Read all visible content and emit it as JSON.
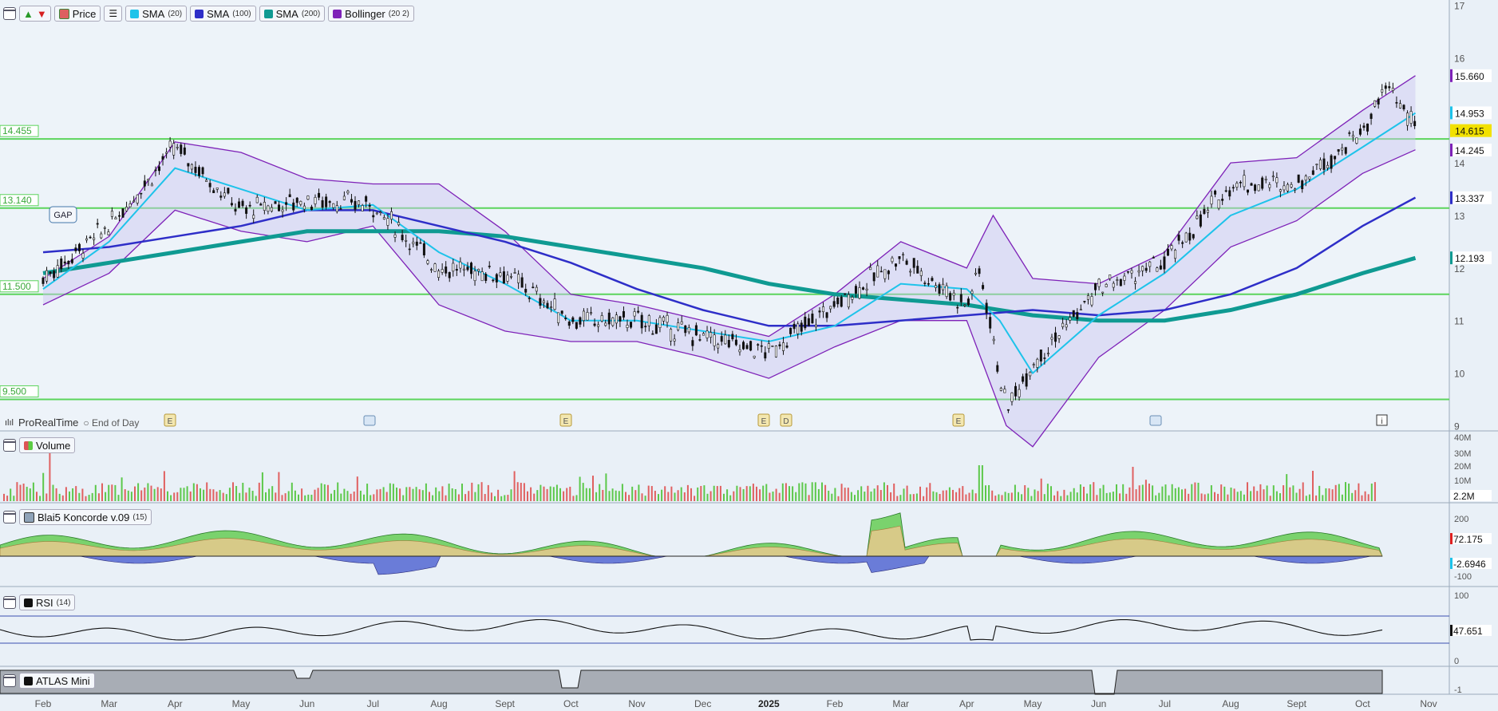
{
  "toolbar": {
    "price_label": "Price",
    "indicators": [
      {
        "name": "SMA",
        "param": "(20)",
        "color": "#1ec3ea"
      },
      {
        "name": "SMA",
        "param": "(100)",
        "color": "#2e2ec8"
      },
      {
        "name": "SMA",
        "param": "(200)",
        "color": "#0f9a92"
      },
      {
        "name": "Bollinger",
        "param": "(20 2)",
        "color": "#7e22b8"
      }
    ]
  },
  "brand": {
    "name": "ProRealTime",
    "mode": "End of Day"
  },
  "panels": {
    "volume": {
      "label": "Volume",
      "last": "2.2M",
      "axis": [
        "40M",
        "30M",
        "20M",
        "10M"
      ]
    },
    "koncorde": {
      "label": "Blai5 Koncorde v.09",
      "param": "(15)",
      "last_values": [
        "72.175",
        "-2.6946"
      ],
      "axis": [
        "200",
        "-100"
      ]
    },
    "rsi": {
      "label": "RSI",
      "param": "(14)",
      "last": "47.651",
      "axis": [
        "100",
        "0"
      ]
    },
    "atlas": {
      "label": "ATLAS Mini",
      "axis": [
        "-1"
      ]
    }
  },
  "gap_label": "GAP",
  "event_markers": [
    "E",
    "E",
    "E",
    "D",
    "E"
  ],
  "chart_data": {
    "type": "candlestick",
    "x_labels": [
      "Feb",
      "Mar",
      "Apr",
      "May",
      "Jun",
      "Jul",
      "Aug",
      "Sept",
      "Oct",
      "Nov",
      "Dec",
      "2025",
      "Feb",
      "Mar",
      "Apr",
      "May",
      "Jun",
      "Jul",
      "Aug",
      "Sept",
      "Oct",
      "Nov"
    ],
    "y_ticks": [
      9,
      10,
      11,
      12,
      13,
      14,
      15,
      16,
      17
    ],
    "ylim": [
      8.9,
      17.1
    ],
    "horizontal_levels": [
      {
        "value": 14.455,
        "label": "14.455",
        "color": "#5cd45c"
      },
      {
        "value": 13.14,
        "label": "13.140",
        "color": "#5cd45c"
      },
      {
        "value": 11.5,
        "label": "11.500",
        "color": "#5cd45c"
      },
      {
        "value": 9.5,
        "label": "9.500",
        "color": "#5cd45c"
      }
    ],
    "right_value_tags": [
      {
        "label": "15.660",
        "series": "Bollinger upper",
        "color": "#7e22b8"
      },
      {
        "label": "14.953",
        "series": "SMA 20",
        "color": "#1ec3ea"
      },
      {
        "label": "14.615",
        "series": "Price",
        "color": "#f2e100"
      },
      {
        "label": "14.245",
        "series": "Bollinger lower",
        "color": "#7e22b8"
      },
      {
        "label": "13.337",
        "series": "SMA 100",
        "color": "#2e2ec8"
      },
      {
        "label": "12.193",
        "series": "SMA 200",
        "color": "#0f9a92"
      }
    ],
    "series": [
      {
        "name": "Price",
        "points": [
          [
            0,
            11.8
          ],
          [
            1,
            12.8
          ],
          [
            2,
            14.3
          ],
          [
            3,
            13.1
          ],
          [
            4,
            13.3
          ],
          [
            5,
            13.2
          ],
          [
            6,
            12.0
          ],
          [
            7,
            11.9
          ],
          [
            8,
            11.0
          ],
          [
            9,
            11.0
          ],
          [
            10,
            10.7
          ],
          [
            11,
            10.4
          ],
          [
            12,
            11.3
          ],
          [
            13,
            12.2
          ],
          [
            14,
            11.3
          ],
          [
            14.2,
            12.0
          ],
          [
            14.6,
            9.3
          ],
          [
            15,
            10.2
          ],
          [
            16,
            11.6
          ],
          [
            17,
            12.1
          ],
          [
            18,
            13.6
          ],
          [
            19,
            13.6
          ],
          [
            20,
            14.6
          ],
          [
            20.4,
            15.5
          ],
          [
            20.8,
            14.6
          ]
        ]
      },
      {
        "name": "SMA (20)",
        "points": [
          [
            0,
            11.6
          ],
          [
            1,
            12.5
          ],
          [
            2,
            13.9
          ],
          [
            3,
            13.5
          ],
          [
            4,
            13.1
          ],
          [
            5,
            13.2
          ],
          [
            6,
            12.3
          ],
          [
            7,
            11.7
          ],
          [
            8,
            11.0
          ],
          [
            9,
            11.0
          ],
          [
            10,
            10.8
          ],
          [
            11,
            10.6
          ],
          [
            12,
            10.9
          ],
          [
            13,
            11.7
          ],
          [
            14,
            11.6
          ],
          [
            14.5,
            11.0
          ],
          [
            15,
            10.0
          ],
          [
            16,
            11.1
          ],
          [
            17,
            11.9
          ],
          [
            18,
            13.0
          ],
          [
            19,
            13.5
          ],
          [
            20,
            14.3
          ],
          [
            20.8,
            14.95
          ]
        ]
      },
      {
        "name": "SMA (100)",
        "points": [
          [
            0,
            12.3
          ],
          [
            1,
            12.4
          ],
          [
            2,
            12.6
          ],
          [
            3,
            12.8
          ],
          [
            4,
            13.1
          ],
          [
            5,
            13.1
          ],
          [
            6,
            12.8
          ],
          [
            7,
            12.5
          ],
          [
            8,
            12.1
          ],
          [
            9,
            11.6
          ],
          [
            10,
            11.2
          ],
          [
            11,
            10.9
          ],
          [
            12,
            10.9
          ],
          [
            13,
            11.0
          ],
          [
            14,
            11.1
          ],
          [
            15,
            11.2
          ],
          [
            16,
            11.1
          ],
          [
            17,
            11.2
          ],
          [
            18,
            11.5
          ],
          [
            19,
            12.0
          ],
          [
            20,
            12.8
          ],
          [
            20.8,
            13.34
          ]
        ]
      },
      {
        "name": "SMA (200)",
        "points": [
          [
            0,
            11.9
          ],
          [
            1,
            12.1
          ],
          [
            2,
            12.3
          ],
          [
            3,
            12.5
          ],
          [
            4,
            12.7
          ],
          [
            5,
            12.7
          ],
          [
            6,
            12.7
          ],
          [
            7,
            12.6
          ],
          [
            8,
            12.4
          ],
          [
            9,
            12.2
          ],
          [
            10,
            12.0
          ],
          [
            11,
            11.7
          ],
          [
            12,
            11.5
          ],
          [
            13,
            11.4
          ],
          [
            14,
            11.3
          ],
          [
            15,
            11.1
          ],
          [
            16,
            11.0
          ],
          [
            17,
            11.0
          ],
          [
            18,
            11.2
          ],
          [
            19,
            11.5
          ],
          [
            20,
            11.9
          ],
          [
            20.8,
            12.19
          ]
        ]
      },
      {
        "name": "Bollinger upper",
        "points": [
          [
            0,
            11.8
          ],
          [
            1,
            12.6
          ],
          [
            2,
            14.4
          ],
          [
            3,
            14.2
          ],
          [
            4,
            13.7
          ],
          [
            5,
            13.6
          ],
          [
            6,
            13.6
          ],
          [
            7,
            12.7
          ],
          [
            8,
            11.5
          ],
          [
            9,
            11.3
          ],
          [
            10,
            11.0
          ],
          [
            11,
            10.7
          ],
          [
            12,
            11.5
          ],
          [
            13,
            12.5
          ],
          [
            14,
            12.0
          ],
          [
            14.4,
            13.0
          ],
          [
            15,
            11.8
          ],
          [
            16,
            11.7
          ],
          [
            17,
            12.3
          ],
          [
            18,
            14.0
          ],
          [
            19,
            14.1
          ],
          [
            20,
            15.0
          ],
          [
            20.8,
            15.66
          ]
        ]
      },
      {
        "name": "Bollinger lower",
        "points": [
          [
            0,
            11.3
          ],
          [
            1,
            11.9
          ],
          [
            2,
            13.1
          ],
          [
            3,
            12.7
          ],
          [
            4,
            12.5
          ],
          [
            5,
            12.8
          ],
          [
            6,
            11.3
          ],
          [
            7,
            10.8
          ],
          [
            8,
            10.6
          ],
          [
            9,
            10.6
          ],
          [
            10,
            10.3
          ],
          [
            11,
            9.9
          ],
          [
            12,
            10.5
          ],
          [
            13,
            11.0
          ],
          [
            14,
            11.0
          ],
          [
            14.6,
            9.0
          ],
          [
            15,
            8.6
          ],
          [
            16,
            10.3
          ],
          [
            17,
            11.2
          ],
          [
            18,
            12.4
          ],
          [
            19,
            12.9
          ],
          [
            20,
            13.8
          ],
          [
            20.8,
            14.25
          ]
        ]
      }
    ]
  }
}
